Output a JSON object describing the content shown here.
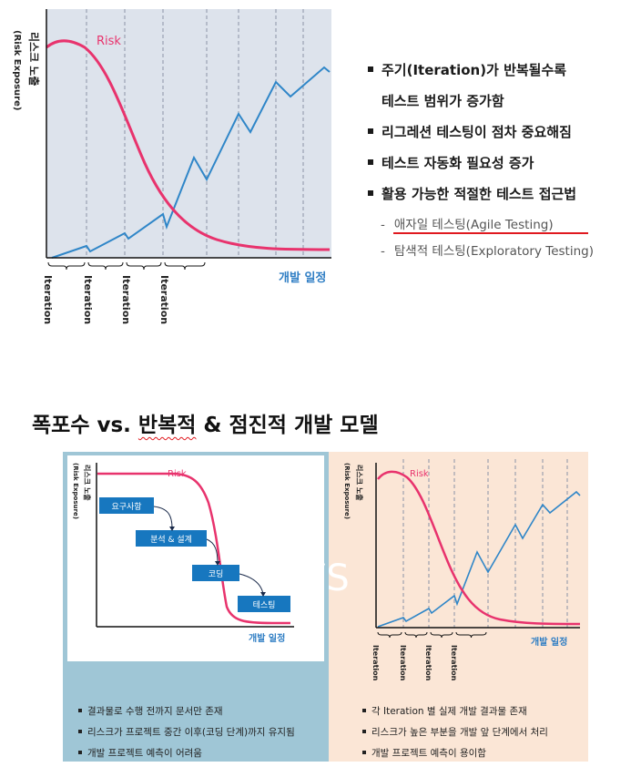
{
  "top_chart": {
    "y_label_main": "리스크 노출",
    "y_label_sub": "(Risk Exposure)",
    "risk_label": "Risk",
    "x_axis_label": "개발 일정",
    "iteration_label": "Iteration",
    "iteration_count": 4,
    "colors": {
      "risk": "#e8336d",
      "progress": "#2f86c8",
      "background": "#dde3ec",
      "axis": "#111111"
    }
  },
  "bullets": {
    "items": [
      "주기(Iteration)가 반복될수록",
      "테스트 범위가 증가함",
      "리그레션 테스팅이 점차 중요해짐",
      "테스트 자동화 필요성 증가",
      "활용 가능한 적절한 테스트 접근법"
    ],
    "sub_items": [
      "애자일 테스팅(Agile Testing)",
      "탐색적 테스팅(Exploratory Testing)"
    ],
    "underline_color": "#e0191f"
  },
  "section_title": {
    "text": "폭포수 vs. 반복적 & 점진적 개발 모델",
    "part1": "폭포수 vs. ",
    "part2": "반복적",
    "part3": " & 점진적 개발 모델"
  },
  "waterfall": {
    "y_label_main": "리스크 노출",
    "y_label_sub": "(Risk Exposure)",
    "risk_label": "Risk",
    "x_axis_label": "개발 일정",
    "steps": [
      "요구사항",
      "분석 & 설계",
      "코딩",
      "테스팅"
    ],
    "notes": [
      "결과물로 수행 전까지 문서만 존재",
      "리스크가 프로젝트 중간 이후(코딩 단계)까지 유지됨",
      "개발 프로젝트 예측이 어려움"
    ],
    "colors": {
      "panel": "#9fc6d6",
      "step_box": "#1777bf"
    }
  },
  "vs_label": "VS",
  "iterative": {
    "y_label_main": "리스크 노출",
    "y_label_sub": "(Risk Exposure)",
    "risk_label": "Risk",
    "x_axis_label": "개발 일정",
    "iteration_label": "Iteration",
    "notes": [
      "각 Iteration 별 실제 개발 결과물 존재",
      "리스크가 높은 부분을 개발 앞 단계에서 처리",
      "개발 프로젝트 예측이 용이함"
    ],
    "colors": {
      "panel": "#fbe6d6"
    }
  }
}
